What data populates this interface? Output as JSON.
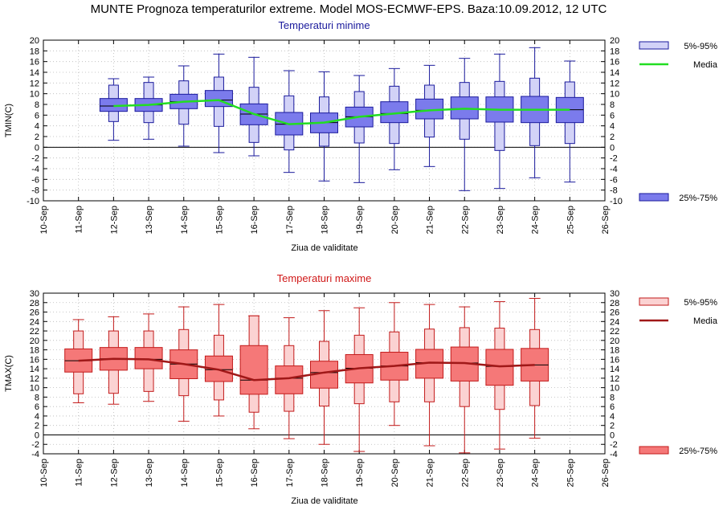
{
  "page_title": "MUNTE  Prognoza temperaturilor extreme.  Model MOS-ECMWF-EPS. Baza:10.09.2012, 12 UTC",
  "chart_data": [
    {
      "type": "box",
      "title": "Temperaturi minime",
      "ylabel": "TMIN(C)",
      "xlabel": "Ziua de validitate",
      "ylim": [
        -10,
        20
      ],
      "yticks": [
        -10,
        -8,
        -6,
        -4,
        -2,
        0,
        2,
        4,
        6,
        8,
        10,
        12,
        14,
        16,
        18,
        20
      ],
      "x_ticks": [
        "10-Sep",
        "11-Sep",
        "12-Sep",
        "13-Sep",
        "14-Sep",
        "15-Sep",
        "16-Sep",
        "17-Sep",
        "18-Sep",
        "19-Sep",
        "20-Sep",
        "21-Sep",
        "22-Sep",
        "23-Sep",
        "24-Sep",
        "25-Sep",
        "26-Sep"
      ],
      "grid": true,
      "colors": {
        "fill_25_75": "#7b7bec",
        "fill_5_95": "#d2d2f7",
        "stroke": "#1a1a9c",
        "median": "#22dd22",
        "title": "#1a1a9c"
      },
      "legend": {
        "p5_95": "5%-95%",
        "media": "Media",
        "p25_75": "25%-75%"
      },
      "boxes": [
        {
          "day": "12-Sep",
          "min": 1.3,
          "p5": 4.8,
          "p25": 6.7,
          "median": 7.7,
          "p75": 9.1,
          "p95": 11.6,
          "max": 12.8
        },
        {
          "day": "13-Sep",
          "min": 1.5,
          "p5": 4.6,
          "p25": 6.7,
          "median": 7.9,
          "p75": 9.1,
          "p95": 12.1,
          "max": 13.1
        },
        {
          "day": "14-Sep",
          "min": 0.2,
          "p5": 4.3,
          "p25": 7.2,
          "median": 8.5,
          "p75": 9.9,
          "p95": 12.4,
          "max": 15.2
        },
        {
          "day": "15-Sep",
          "min": -1.0,
          "p5": 3.9,
          "p25": 7.6,
          "median": 8.8,
          "p75": 10.6,
          "p95": 13.1,
          "max": 17.4
        },
        {
          "day": "16-Sep",
          "min": -1.6,
          "p5": 0.9,
          "p25": 4.2,
          "median": 6.2,
          "p75": 8.1,
          "p95": 11.2,
          "max": 16.8
        },
        {
          "day": "17-Sep",
          "min": -4.7,
          "p5": -0.5,
          "p25": 2.3,
          "median": 4.3,
          "p75": 6.5,
          "p95": 9.6,
          "max": 14.3
        },
        {
          "day": "18-Sep",
          "min": -6.3,
          "p5": 0.2,
          "p25": 2.7,
          "median": 4.6,
          "p75": 6.4,
          "p95": 9.4,
          "max": 14.1
        },
        {
          "day": "19-Sep",
          "min": -6.6,
          "p5": 0.8,
          "p25": 3.8,
          "median": 5.7,
          "p75": 7.5,
          "p95": 10.4,
          "max": 13.4
        },
        {
          "day": "20-Sep",
          "min": -4.2,
          "p5": 0.7,
          "p25": 4.6,
          "median": 6.3,
          "p75": 8.5,
          "p95": 11.4,
          "max": 14.7
        },
        {
          "day": "21-Sep",
          "min": -3.6,
          "p5": 1.9,
          "p25": 5.3,
          "median": 6.9,
          "p75": 9.0,
          "p95": 11.6,
          "max": 15.3
        },
        {
          "day": "22-Sep",
          "min": -8.1,
          "p5": 1.5,
          "p25": 5.3,
          "median": 7.2,
          "p75": 9.4,
          "p95": 12.1,
          "max": 16.6
        },
        {
          "day": "23-Sep",
          "min": -7.7,
          "p5": -0.6,
          "p25": 4.7,
          "median": 7.0,
          "p75": 9.4,
          "p95": 12.3,
          "max": 17.4
        },
        {
          "day": "24-Sep",
          "min": -5.7,
          "p5": 0.3,
          "p25": 4.6,
          "median": 7.0,
          "p75": 9.5,
          "p95": 12.9,
          "max": 18.6
        },
        {
          "day": "25-Sep",
          "min": -6.5,
          "p5": 0.7,
          "p25": 4.6,
          "median": 7.0,
          "p75": 9.3,
          "p95": 12.2,
          "max": 16.1
        }
      ]
    },
    {
      "type": "box",
      "title": "Temperaturi maxime",
      "ylabel": "TMAX(C)",
      "xlabel": "Ziua de validitate",
      "ylim": [
        -4,
        30
      ],
      "yticks": [
        -4,
        -2,
        0,
        2,
        4,
        6,
        8,
        10,
        12,
        14,
        16,
        18,
        20,
        22,
        24,
        26,
        28,
        30
      ],
      "x_ticks": [
        "10-Sep",
        "11-Sep",
        "12-Sep",
        "13-Sep",
        "14-Sep",
        "15-Sep",
        "16-Sep",
        "17-Sep",
        "18-Sep",
        "19-Sep",
        "20-Sep",
        "21-Sep",
        "22-Sep",
        "23-Sep",
        "24-Sep",
        "25-Sep",
        "26-Sep"
      ],
      "grid": true,
      "colors": {
        "fill_25_75": "#f57878",
        "fill_5_95": "#fbd2d2",
        "stroke": "#c21a1a",
        "median": "#a01818",
        "title": "#d01818"
      },
      "legend": {
        "p5_95": "5%-95%",
        "media": "Media",
        "p25_75": "25%-75%"
      },
      "boxes": [
        {
          "day": "11-Sep",
          "min": 6.8,
          "p5": 8.7,
          "p25": 13.3,
          "median": 15.7,
          "p75": 18.2,
          "p95": 22.0,
          "max": 24.4
        },
        {
          "day": "12-Sep",
          "min": 6.5,
          "p5": 8.8,
          "p25": 13.7,
          "median": 16.1,
          "p75": 18.5,
          "p95": 22.0,
          "max": 25.0
        },
        {
          "day": "13-Sep",
          "min": 7.1,
          "p5": 9.2,
          "p25": 14.0,
          "median": 16.0,
          "p75": 18.5,
          "p95": 22.0,
          "max": 25.6
        },
        {
          "day": "14-Sep",
          "min": 2.9,
          "p5": 8.3,
          "p25": 11.9,
          "median": 15.0,
          "p75": 18.0,
          "p95": 22.3,
          "max": 27.1
        },
        {
          "day": "15-Sep",
          "min": 4.0,
          "p5": 7.4,
          "p25": 11.3,
          "median": 13.8,
          "p75": 16.7,
          "p95": 21.1,
          "max": 27.6
        },
        {
          "day": "16-Sep",
          "min": 1.3,
          "p5": 4.8,
          "p25": 8.6,
          "median": 11.6,
          "p75": 18.9,
          "p95": 25.2,
          "max": 25.2
        },
        {
          "day": "17-Sep",
          "min": -0.8,
          "p5": 5.0,
          "p25": 8.7,
          "median": 12.0,
          "p75": 14.6,
          "p95": 18.9,
          "max": 24.8
        },
        {
          "day": "18-Sep",
          "min": -2.0,
          "p5": 6.1,
          "p25": 9.9,
          "median": 13.2,
          "p75": 15.6,
          "p95": 19.8,
          "max": 26.3
        },
        {
          "day": "19-Sep",
          "min": -3.5,
          "p5": 6.6,
          "p25": 11.0,
          "median": 14.1,
          "p75": 17.0,
          "p95": 21.1,
          "max": 26.9
        },
        {
          "day": "20-Sep",
          "min": 2.0,
          "p5": 7.0,
          "p25": 11.6,
          "median": 14.6,
          "p75": 17.5,
          "p95": 21.8,
          "max": 28.0
        },
        {
          "day": "21-Sep",
          "min": -2.3,
          "p5": 7.0,
          "p25": 12.0,
          "median": 15.3,
          "p75": 18.1,
          "p95": 22.4,
          "max": 27.6
        },
        {
          "day": "22-Sep",
          "min": -3.8,
          "p5": 6.0,
          "p25": 11.4,
          "median": 15.2,
          "p75": 18.6,
          "p95": 22.7,
          "max": 27.1
        },
        {
          "day": "23-Sep",
          "min": -3.0,
          "p5": 5.4,
          "p25": 10.5,
          "median": 14.5,
          "p75": 18.1,
          "p95": 22.6,
          "max": 28.2
        },
        {
          "day": "24-Sep",
          "min": -0.7,
          "p5": 6.2,
          "p25": 11.4,
          "median": 14.8,
          "p75": 18.3,
          "p95": 22.3,
          "max": 28.9
        }
      ]
    }
  ]
}
